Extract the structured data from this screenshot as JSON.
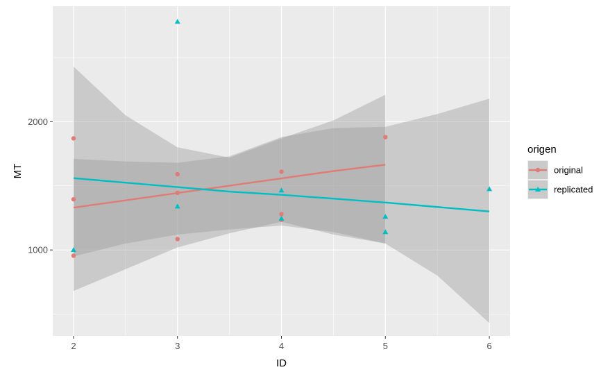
{
  "chart_data": {
    "type": "scatter",
    "xlabel": "ID",
    "ylabel": "MT",
    "xlim": [
      1.8,
      6.2
    ],
    "ylim": [
      330,
      2900
    ],
    "x_ticks": [
      2,
      3,
      4,
      5,
      6
    ],
    "x_minor_ticks": [
      2.5,
      3.5,
      4.5,
      5.5
    ],
    "y_ticks": [
      1000,
      2000
    ],
    "y_minor_ticks": [
      500,
      1500,
      2500
    ],
    "grid": true,
    "legend": {
      "title": "origen",
      "position": "right"
    },
    "series": [
      {
        "name": "original",
        "color": "#e07b75",
        "marker": "circle",
        "points": [
          {
            "x": 2,
            "y": 1870
          },
          {
            "x": 2,
            "y": 1395
          },
          {
            "x": 2,
            "y": 955
          },
          {
            "x": 3,
            "y": 1590
          },
          {
            "x": 3,
            "y": 1445
          },
          {
            "x": 3,
            "y": 1085
          },
          {
            "x": 4,
            "y": 1610
          },
          {
            "x": 4,
            "y": 1280
          },
          {
            "x": 4,
            "y": 1235
          },
          {
            "x": 5,
            "y": 1880
          }
        ],
        "fit": {
          "x": [
            2,
            2.5,
            3,
            3.5,
            4,
            4.5,
            5
          ],
          "y": [
            1330,
            1387,
            1444,
            1501,
            1558,
            1615,
            1665
          ],
          "lower": [
            680,
            850,
            1020,
            1130,
            1220,
            1120,
            1050
          ],
          "upper": [
            2430,
            2050,
            1800,
            1720,
            1870,
            2010,
            2210
          ]
        }
      },
      {
        "name": "replicated",
        "color": "#00bfc4",
        "marker": "triangle",
        "points": [
          {
            "x": 2,
            "y": 1000
          },
          {
            "x": 3,
            "y": 2780
          },
          {
            "x": 3,
            "y": 1340
          },
          {
            "x": 4,
            "y": 1465
          },
          {
            "x": 4,
            "y": 1245
          },
          {
            "x": 5,
            "y": 1260
          },
          {
            "x": 5,
            "y": 1140
          },
          {
            "x": 6,
            "y": 1475
          }
        ],
        "fit": {
          "x": [
            2,
            2.5,
            3,
            3.5,
            4,
            4.5,
            5,
            5.5,
            6
          ],
          "y": [
            1560,
            1525,
            1490,
            1455,
            1430,
            1400,
            1370,
            1335,
            1300
          ],
          "lower": [
            950,
            1050,
            1120,
            1160,
            1190,
            1140,
            1050,
            800,
            430
          ],
          "upper": [
            1710,
            1690,
            1680,
            1730,
            1880,
            1950,
            1960,
            2060,
            2180
          ]
        }
      }
    ]
  }
}
